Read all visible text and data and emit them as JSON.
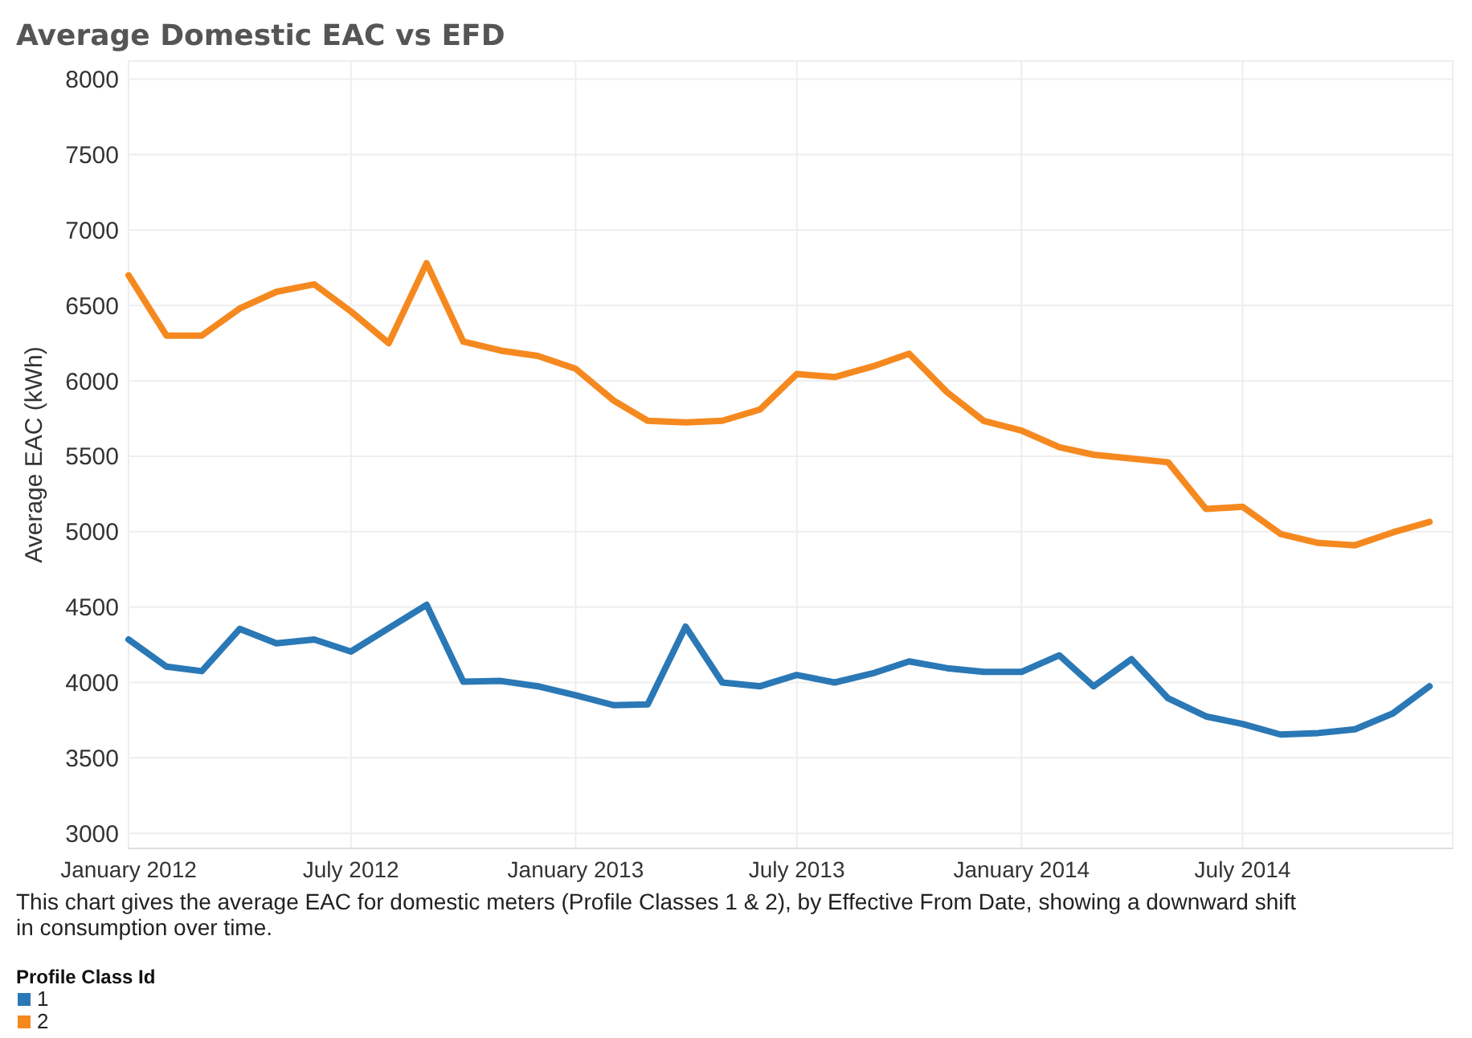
{
  "chart_data": {
    "type": "line",
    "title": "Average Domestic EAC vs EFD",
    "ylabel": "Average EAC (kWh)",
    "x": [
      "2012-01",
      "2012-02",
      "2012-03",
      "2012-04",
      "2012-05",
      "2012-06",
      "2012-07",
      "2012-08",
      "2012-09",
      "2012-10",
      "2012-11",
      "2012-12",
      "2013-01",
      "2013-02",
      "2013-03",
      "2013-04",
      "2013-05",
      "2013-06",
      "2013-07",
      "2013-08",
      "2013-09",
      "2013-10",
      "2013-11",
      "2013-12",
      "2014-01",
      "2014-02",
      "2014-03",
      "2014-04",
      "2014-05",
      "2014-06",
      "2014-07",
      "2014-08",
      "2014-09",
      "2014-10",
      "2014-11",
      "2014-12"
    ],
    "series": [
      {
        "name": "1",
        "color": "#2a78b5",
        "values": [
          4285,
          4105,
          4075,
          4355,
          4260,
          4285,
          4205,
          4360,
          4515,
          4005,
          4010,
          3975,
          3915,
          3850,
          3855,
          4370,
          4000,
          3975,
          4050,
          4000,
          4060,
          4140,
          4095,
          4070,
          4070,
          4180,
          3975,
          4155,
          3895,
          3775,
          3725,
          3655,
          3665,
          3690,
          3795,
          3975
        ]
      },
      {
        "name": "2",
        "color": "#f5891f",
        "values": [
          6700,
          6300,
          6300,
          6480,
          6590,
          6640,
          6460,
          6250,
          6780,
          6260,
          6200,
          6165,
          6080,
          5870,
          5735,
          5725,
          5735,
          5810,
          6045,
          6025,
          6095,
          6180,
          5925,
          5735,
          5670,
          5560,
          5510,
          5485,
          5460,
          5150,
          5165,
          4985,
          4925,
          4910,
          4995,
          5065
        ]
      }
    ],
    "xlim": [
      "2012-01",
      "2014-12-20"
    ],
    "xticks": [
      {
        "value": "2012-01",
        "label": "January 2012"
      },
      {
        "value": "2012-07",
        "label": "July 2012"
      },
      {
        "value": "2013-01",
        "label": "January 2013"
      },
      {
        "value": "2013-07",
        "label": "July 2013"
      },
      {
        "value": "2014-01",
        "label": "January 2014"
      },
      {
        "value": "2014-07",
        "label": "July 2014"
      }
    ],
    "ylim": [
      2900,
      8120
    ],
    "yticks": [
      3000,
      3500,
      4000,
      4500,
      5000,
      5500,
      6000,
      6500,
      7000,
      7500,
      8000
    ],
    "grid": true,
    "legend": "bottom",
    "legend_title": "Profile Class Id",
    "line_style": "solid",
    "marker": "none",
    "annotations": [
      "This chart gives the average EAC for domestic meters (Profile Classes 1 & 2), by Effective From Date, showing a downward shift in consumption over time."
    ]
  }
}
